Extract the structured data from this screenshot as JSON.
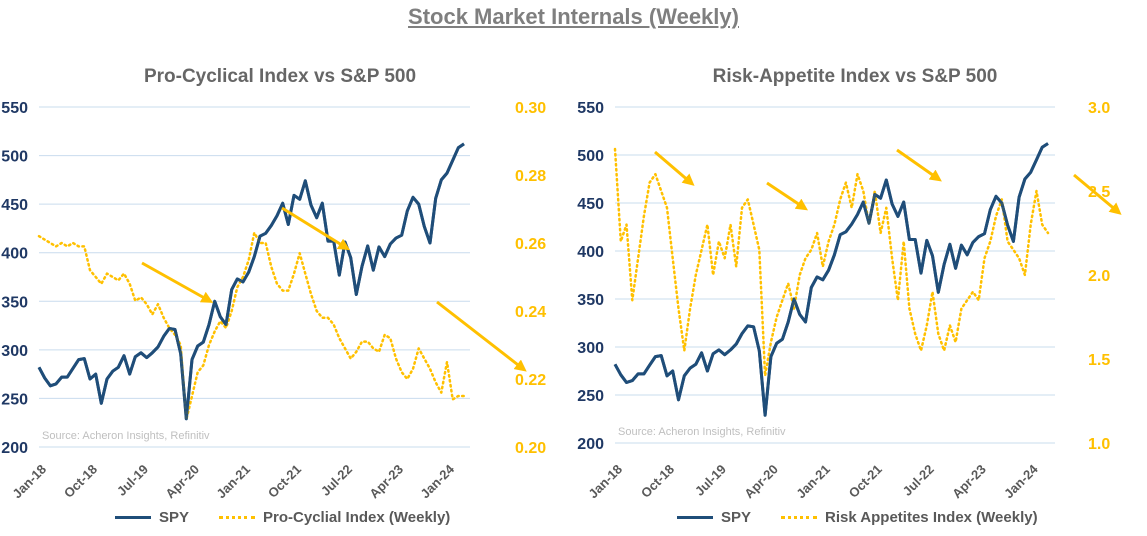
{
  "title": "Stock Market Internals (Weekly)",
  "colors": {
    "spy": "#1f4e79",
    "index": "#ffc000",
    "left_axis": "#1f3864",
    "grid": "#c9dcee",
    "source": "#bfbfbf"
  },
  "chart_data": [
    {
      "type": "line",
      "title": "Pro-Cyclical Index vs S&P 500",
      "source": "Source: Acheron Insights, Refinitiv",
      "x_tick_labels": [
        "Jan-18",
        "Oct-18",
        "Jul-19",
        "Apr-20",
        "Jan-21",
        "Oct-21",
        "Jul-22",
        "Apr-23",
        "Jan-24"
      ],
      "y_left": {
        "range": [
          200,
          550
        ],
        "ticks": [
          "200",
          "250",
          "300",
          "350",
          "400",
          "450",
          "500",
          "550"
        ]
      },
      "y_right": {
        "range": [
          0.2,
          0.3
        ],
        "ticks": [
          "0.20",
          "0.22",
          "0.24",
          "0.26",
          "0.28",
          "0.30"
        ]
      },
      "grid": true,
      "legend_placement": "bottom",
      "x": [
        "2018-01",
        "2018-02",
        "2018-03",
        "2018-04",
        "2018-05",
        "2018-06",
        "2018-07",
        "2018-08",
        "2018-09",
        "2018-10",
        "2018-11",
        "2018-12",
        "2019-01",
        "2019-02",
        "2019-03",
        "2019-04",
        "2019-05",
        "2019-06",
        "2019-07",
        "2019-08",
        "2019-09",
        "2019-10",
        "2019-11",
        "2019-12",
        "2020-01",
        "2020-02",
        "2020-03",
        "2020-04",
        "2020-05",
        "2020-06",
        "2020-07",
        "2020-08",
        "2020-09",
        "2020-10",
        "2020-11",
        "2020-12",
        "2021-01",
        "2021-02",
        "2021-03",
        "2021-04",
        "2021-05",
        "2021-06",
        "2021-07",
        "2021-08",
        "2021-09",
        "2021-10",
        "2021-11",
        "2021-12",
        "2022-01",
        "2022-02",
        "2022-03",
        "2022-04",
        "2022-05",
        "2022-06",
        "2022-07",
        "2022-08",
        "2022-09",
        "2022-10",
        "2022-11",
        "2022-12",
        "2023-01",
        "2023-02",
        "2023-03",
        "2023-04",
        "2023-05",
        "2023-06",
        "2023-07",
        "2023-08",
        "2023-09",
        "2023-10",
        "2023-11",
        "2023-12",
        "2024-01",
        "2024-02",
        "2024-03",
        "2024-04"
      ],
      "series": [
        {
          "name": "SPY",
          "axis": "left",
          "style": "solid",
          "values": [
            282,
            271,
            263,
            265,
            272,
            272,
            281,
            290,
            291,
            270,
            275,
            245,
            270,
            278,
            282,
            294,
            275,
            293,
            297,
            292,
            297,
            303,
            314,
            322,
            321,
            296,
            229,
            290,
            304,
            308,
            326,
            350,
            334,
            326,
            362,
            373,
            370,
            380,
            396,
            417,
            420,
            428,
            438,
            451,
            429,
            459,
            455,
            474,
            449,
            436,
            451,
            412,
            412,
            377,
            411,
            395,
            357,
            386,
            407,
            382,
            406,
            396,
            409,
            415,
            418,
            443,
            457,
            450,
            427,
            410,
            456,
            475,
            482,
            495,
            508,
            512
          ]
        },
        {
          "name": "Pro-Cyclial Index (Weekly)",
          "axis": "right",
          "style": "dotted",
          "values": [
            0.262,
            0.261,
            0.26,
            0.259,
            0.26,
            0.259,
            0.26,
            0.259,
            0.259,
            0.252,
            0.25,
            0.248,
            0.251,
            0.25,
            0.249,
            0.251,
            0.248,
            0.243,
            0.244,
            0.242,
            0.239,
            0.242,
            0.238,
            0.235,
            0.233,
            0.23,
            0.208,
            0.215,
            0.222,
            0.224,
            0.23,
            0.234,
            0.237,
            0.235,
            0.24,
            0.247,
            0.25,
            0.255,
            0.263,
            0.26,
            0.26,
            0.253,
            0.248,
            0.246,
            0.246,
            0.251,
            0.257,
            0.251,
            0.245,
            0.24,
            0.238,
            0.238,
            0.236,
            0.232,
            0.229,
            0.226,
            0.228,
            0.231,
            0.231,
            0.229,
            0.228,
            0.233,
            0.232,
            0.226,
            0.222,
            0.22,
            0.223,
            0.229,
            0.226,
            0.223,
            0.219,
            0.216,
            0.225,
            0.214,
            0.215,
            0.215
          ]
        }
      ]
    },
    {
      "type": "line",
      "title": "Risk-Appetite Index vs S&P 500",
      "source": "Source: Acheron Insights, Refinitiv",
      "x_tick_labels": [
        "Jan-18",
        "Oct-18",
        "Jul-19",
        "Apr-20",
        "Jan-21",
        "Oct-21",
        "Jul-22",
        "Apr-23",
        "Jan-24"
      ],
      "y_left": {
        "range": [
          200,
          550
        ],
        "ticks": [
          "200",
          "250",
          "300",
          "350",
          "400",
          "450",
          "500",
          "550"
        ]
      },
      "y_right": {
        "range": [
          1.0,
          3.0
        ],
        "ticks": [
          "1.0",
          "1.5",
          "2.0",
          "2.5",
          "3.0"
        ]
      },
      "grid": true,
      "legend_placement": "bottom",
      "x": [
        "2018-01",
        "2018-02",
        "2018-03",
        "2018-04",
        "2018-05",
        "2018-06",
        "2018-07",
        "2018-08",
        "2018-09",
        "2018-10",
        "2018-11",
        "2018-12",
        "2019-01",
        "2019-02",
        "2019-03",
        "2019-04",
        "2019-05",
        "2019-06",
        "2019-07",
        "2019-08",
        "2019-09",
        "2019-10",
        "2019-11",
        "2019-12",
        "2020-01",
        "2020-02",
        "2020-03",
        "2020-04",
        "2020-05",
        "2020-06",
        "2020-07",
        "2020-08",
        "2020-09",
        "2020-10",
        "2020-11",
        "2020-12",
        "2021-01",
        "2021-02",
        "2021-03",
        "2021-04",
        "2021-05",
        "2021-06",
        "2021-07",
        "2021-08",
        "2021-09",
        "2021-10",
        "2021-11",
        "2021-12",
        "2022-01",
        "2022-02",
        "2022-03",
        "2022-04",
        "2022-05",
        "2022-06",
        "2022-07",
        "2022-08",
        "2022-09",
        "2022-10",
        "2022-11",
        "2022-12",
        "2023-01",
        "2023-02",
        "2023-03",
        "2023-04",
        "2023-05",
        "2023-06",
        "2023-07",
        "2023-08",
        "2023-09",
        "2023-10",
        "2023-11",
        "2023-12",
        "2024-01",
        "2024-02",
        "2024-03",
        "2024-04"
      ],
      "series": [
        {
          "name": "SPY",
          "axis": "left",
          "style": "solid",
          "values": [
            282,
            271,
            263,
            265,
            272,
            272,
            281,
            290,
            291,
            270,
            275,
            245,
            270,
            278,
            282,
            294,
            275,
            293,
            297,
            292,
            297,
            303,
            314,
            322,
            321,
            296,
            229,
            290,
            304,
            308,
            326,
            350,
            334,
            326,
            362,
            373,
            370,
            380,
            396,
            417,
            420,
            428,
            438,
            451,
            429,
            459,
            455,
            474,
            449,
            436,
            451,
            412,
            412,
            377,
            411,
            395,
            357,
            386,
            407,
            382,
            406,
            396,
            409,
            415,
            418,
            443,
            457,
            450,
            427,
            410,
            456,
            475,
            482,
            495,
            508,
            512
          ]
        },
        {
          "name": "Risk Appetites Index (Weekly)",
          "axis": "right",
          "style": "dotted",
          "values": [
            2.75,
            2.2,
            2.3,
            1.85,
            2.1,
            2.35,
            2.55,
            2.6,
            2.5,
            2.4,
            2.1,
            1.8,
            1.55,
            1.8,
            2.0,
            2.15,
            2.3,
            2.0,
            2.2,
            2.1,
            2.3,
            2.05,
            2.4,
            2.45,
            2.3,
            2.15,
            1.4,
            1.6,
            1.75,
            1.85,
            1.95,
            1.8,
            2.0,
            2.1,
            2.15,
            2.25,
            2.05,
            2.2,
            2.3,
            2.45,
            2.55,
            2.4,
            2.6,
            2.5,
            2.3,
            2.5,
            2.25,
            2.4,
            2.1,
            1.85,
            2.2,
            1.8,
            1.65,
            1.55,
            1.7,
            1.9,
            1.65,
            1.55,
            1.7,
            1.6,
            1.8,
            1.85,
            1.9,
            1.85,
            2.1,
            2.2,
            2.35,
            2.45,
            2.2,
            2.15,
            2.1,
            2.0,
            2.3,
            2.5,
            2.3,
            2.25
          ]
        }
      ]
    }
  ]
}
